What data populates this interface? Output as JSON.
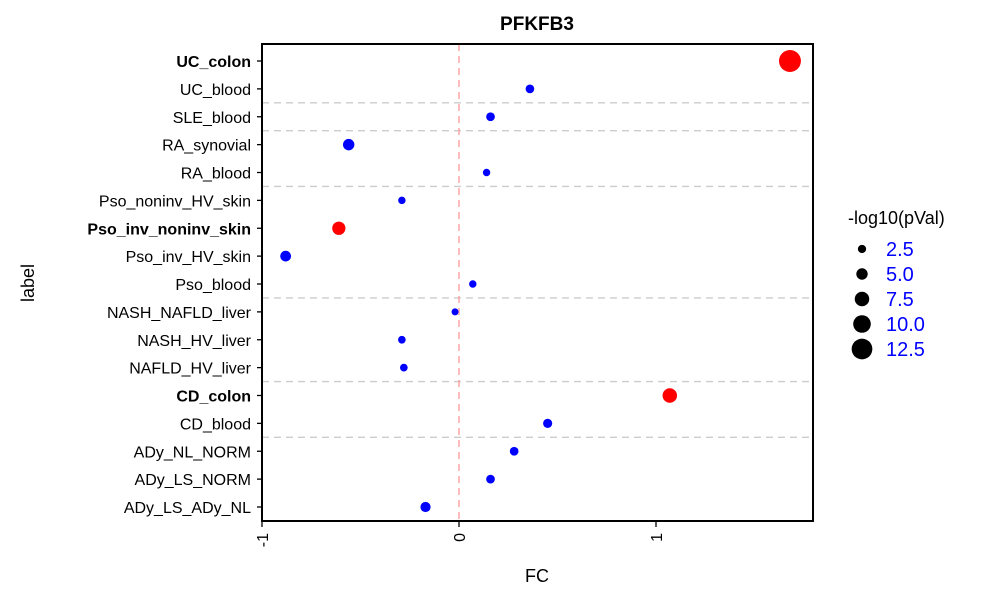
{
  "chart_data": {
    "type": "scatter",
    "title": "PFKFB3",
    "xlabel": "FC",
    "ylabel": "label",
    "xlim": [
      -1.0,
      1.8
    ],
    "x_ticks": [
      "-1",
      "0",
      "1"
    ],
    "x_tick_values": [
      -1,
      0,
      1
    ],
    "reference_line_x": 0,
    "legend": {
      "title": "-log10(pVal)",
      "placement": "right",
      "entries": [
        "2.5",
        "5.0",
        "7.5",
        "10.0",
        "12.5"
      ],
      "entry_values": [
        2.5,
        5.0,
        7.5,
        10.0,
        12.5
      ]
    },
    "colors": {
      "significant": "#ff0000",
      "non_significant": "#0000ff",
      "zero_line": "#ff9999",
      "separator": "#cccccc"
    },
    "points": [
      {
        "label": "UC_colon",
        "fc": 1.68,
        "pval": 13.5,
        "significant": true,
        "bold": true
      },
      {
        "label": "UC_blood",
        "fc": 0.36,
        "pval": 2.8,
        "significant": false,
        "bold": false
      },
      {
        "label": "SLE_blood",
        "fc": 0.16,
        "pval": 2.8,
        "significant": false,
        "bold": false
      },
      {
        "label": "RA_synovial",
        "fc": -0.56,
        "pval": 5.0,
        "significant": false,
        "bold": false
      },
      {
        "label": "RA_blood",
        "fc": 0.14,
        "pval": 1.8,
        "significant": false,
        "bold": false
      },
      {
        "label": "Pso_noninv_HV_skin",
        "fc": -0.29,
        "pval": 1.8,
        "significant": false,
        "bold": false
      },
      {
        "label": "Pso_inv_noninv_skin",
        "fc": -0.61,
        "pval": 6.5,
        "significant": true,
        "bold": true
      },
      {
        "label": "Pso_inv_HV_skin",
        "fc": -0.88,
        "pval": 4.5,
        "significant": false,
        "bold": false
      },
      {
        "label": "Pso_blood",
        "fc": 0.07,
        "pval": 1.8,
        "significant": false,
        "bold": false
      },
      {
        "label": "NASH_NAFLD_liver",
        "fc": -0.02,
        "pval": 1.5,
        "significant": false,
        "bold": false
      },
      {
        "label": "NASH_HV_liver",
        "fc": -0.29,
        "pval": 2.0,
        "significant": false,
        "bold": false
      },
      {
        "label": "NAFLD_HV_liver",
        "fc": -0.28,
        "pval": 2.0,
        "significant": false,
        "bold": false
      },
      {
        "label": "CD_colon",
        "fc": 1.07,
        "pval": 7.5,
        "significant": true,
        "bold": true
      },
      {
        "label": "CD_blood",
        "fc": 0.45,
        "pval": 3.2,
        "significant": false,
        "bold": false
      },
      {
        "label": "ADy_NL_NORM",
        "fc": 0.28,
        "pval": 2.8,
        "significant": false,
        "bold": false
      },
      {
        "label": "ADy_LS_NORM",
        "fc": 0.16,
        "pval": 2.8,
        "significant": false,
        "bold": false
      },
      {
        "label": "ADy_LS_ADy_NL",
        "fc": -0.17,
        "pval": 4.0,
        "significant": false,
        "bold": false
      }
    ],
    "group_separators_after": [
      "UC_blood",
      "SLE_blood",
      "RA_blood",
      "Pso_blood",
      "NAFLD_HV_liver",
      "CD_blood"
    ]
  }
}
